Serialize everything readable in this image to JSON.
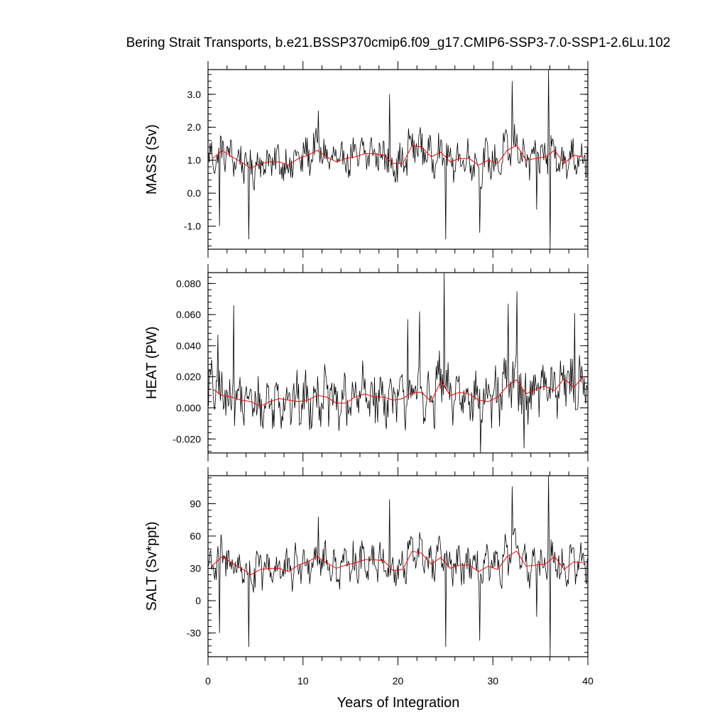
{
  "chart_data": {
    "type": "line",
    "title": "Bering Strait Transports, b.e21.BSSP370cmip6.f09_g17.CMIP6-SSP3-7.0-SSP1-2.6Lu.102",
    "xlabel": "Years of Integration",
    "xlim": [
      0,
      40
    ],
    "xticks": [
      0,
      10,
      20,
      30,
      40
    ],
    "xtick_labels": [
      "0",
      "10",
      "20",
      "30",
      "40"
    ],
    "line_colors": {
      "monthly": "#000000",
      "annual": "#ff0000"
    },
    "panels": [
      {
        "id": "mass",
        "ylabel": "MASS (Sv)",
        "ylim": [
          -1.7,
          3.75
        ],
        "yticks": [
          -1.0,
          0.0,
          1.0,
          2.0,
          3.0
        ],
        "ytick_labels": [
          "-1.0",
          "0.0",
          "1.0",
          "2.0",
          "3.0"
        ],
        "minor_step": 0.2,
        "annual": {
          "x": [
            0.5,
            1.5,
            2.5,
            3.5,
            4.5,
            5.5,
            6.5,
            7.5,
            8.5,
            9.5,
            10.5,
            11.5,
            12.5,
            13.5,
            14.5,
            15.5,
            16.5,
            17.5,
            18.5,
            19.5,
            20.5,
            21.5,
            22.5,
            23.5,
            24.5,
            25.5,
            26.5,
            27.5,
            28.5,
            29.5,
            30.5,
            31.5,
            32.5,
            33.5,
            34.5,
            35.5,
            36.5,
            37.5,
            38.5,
            39.5
          ],
          "values": [
            1.05,
            1.3,
            1.1,
            0.95,
            0.75,
            0.9,
            0.95,
            0.95,
            0.85,
            1.05,
            1.15,
            1.3,
            1.1,
            0.95,
            1.05,
            1.1,
            1.2,
            1.2,
            1.15,
            0.9,
            0.9,
            1.45,
            1.4,
            1.1,
            1.25,
            0.95,
            1.05,
            1.05,
            0.85,
            1.0,
            0.9,
            1.3,
            1.45,
            1.0,
            1.05,
            1.1,
            1.3,
            0.9,
            1.15,
            1.1
          ]
        },
        "monthly": {
          "x0": 0.0417,
          "dx": 0.0833,
          "n": 480,
          "amplitude": 0.8,
          "floor": -1.7,
          "ceiling": 3.75,
          "spikes": [
            {
              "x": 1.2,
              "value": -1.0
            },
            {
              "x": 4.3,
              "value": -1.4
            },
            {
              "x": 11.6,
              "value": 2.5
            },
            {
              "x": 19.1,
              "value": 3.0
            },
            {
              "x": 25.0,
              "value": -1.4
            },
            {
              "x": 28.6,
              "value": -1.2
            },
            {
              "x": 32.0,
              "value": 3.4
            },
            {
              "x": 35.9,
              "value": 3.75
            },
            {
              "x": 36.0,
              "value": -1.7
            },
            {
              "x": 34.6,
              "value": -0.5
            }
          ]
        }
      },
      {
        "id": "heat",
        "ylabel": "HEAT (PW)",
        "ylim": [
          -0.029,
          0.087
        ],
        "yticks": [
          -0.02,
          0.0,
          0.02,
          0.04,
          0.06,
          0.08
        ],
        "ytick_labels": [
          "-0.020",
          "0.000",
          "0.020",
          "0.040",
          "0.060",
          "0.080"
        ],
        "minor_step": 0.004,
        "annual": {
          "x": [
            0.5,
            1.5,
            2.5,
            3.5,
            4.5,
            5.5,
            6.5,
            7.5,
            8.5,
            9.5,
            10.5,
            11.5,
            12.5,
            13.5,
            14.5,
            15.5,
            16.5,
            17.5,
            18.5,
            19.5,
            20.5,
            21.5,
            22.5,
            23.5,
            24.5,
            25.5,
            26.5,
            27.5,
            28.5,
            29.5,
            30.5,
            31.5,
            32.5,
            33.5,
            34.5,
            35.5,
            36.5,
            37.5,
            38.5,
            39.5
          ],
          "values": [
            0.012,
            0.008,
            0.007,
            0.005,
            0.004,
            0.001,
            0.004,
            0.006,
            0.005,
            0.004,
            0.005,
            0.008,
            0.007,
            0.003,
            0.003,
            0.007,
            0.009,
            0.007,
            0.007,
            0.005,
            0.006,
            0.01,
            0.01,
            0.004,
            0.017,
            0.008,
            0.01,
            0.009,
            0.005,
            0.004,
            0.007,
            0.014,
            0.018,
            0.009,
            0.012,
            0.014,
            0.011,
            0.019,
            0.013,
            0.02
          ]
        },
        "monthly": {
          "x0": 0.0417,
          "dx": 0.0833,
          "n": 480,
          "amplitude": 0.024,
          "floor": -0.029,
          "ceiling": 0.087,
          "spikes": [
            {
              "x": 1.0,
              "value": 0.047
            },
            {
              "x": 2.7,
              "value": 0.066
            },
            {
              "x": 21.0,
              "value": 0.057
            },
            {
              "x": 22.3,
              "value": 0.062
            },
            {
              "x": 24.9,
              "value": 0.087
            },
            {
              "x": 28.7,
              "value": -0.029
            },
            {
              "x": 31.6,
              "value": 0.067
            },
            {
              "x": 32.5,
              "value": 0.075
            },
            {
              "x": 33.3,
              "value": -0.026
            },
            {
              "x": 38.6,
              "value": 0.061
            }
          ]
        }
      },
      {
        "id": "salt",
        "ylabel": "SALT (Sv*ppt)",
        "ylim": [
          -52,
          116
        ],
        "yticks": [
          -30,
          0,
          30,
          60,
          90
        ],
        "ytick_labels": [
          "-30",
          "0",
          "30",
          "60",
          "90"
        ],
        "minor_step": 6,
        "annual": {
          "x": [
            0.5,
            1.5,
            2.5,
            3.5,
            4.5,
            5.5,
            6.5,
            7.5,
            8.5,
            9.5,
            10.5,
            11.5,
            12.5,
            13.5,
            14.5,
            15.5,
            16.5,
            17.5,
            18.5,
            19.5,
            20.5,
            21.5,
            22.5,
            23.5,
            24.5,
            25.5,
            26.5,
            27.5,
            28.5,
            29.5,
            30.5,
            31.5,
            32.5,
            33.5,
            34.5,
            35.5,
            36.5,
            37.5,
            38.5,
            39.5
          ],
          "values": [
            33,
            41,
            35,
            30,
            24,
            29,
            30,
            30,
            27,
            33,
            36,
            41,
            35,
            30,
            33,
            35,
            38,
            38,
            37,
            28,
            29,
            46,
            44,
            34,
            40,
            30,
            33,
            33,
            27,
            32,
            29,
            41,
            46,
            32,
            33,
            34,
            41,
            29,
            36,
            35
          ]
        },
        "monthly": {
          "x0": 0.0417,
          "dx": 0.0833,
          "n": 480,
          "amplitude": 25,
          "floor": -52,
          "ceiling": 116,
          "spikes": [
            {
              "x": 1.2,
              "value": -30
            },
            {
              "x": 4.3,
              "value": -43
            },
            {
              "x": 11.6,
              "value": 78
            },
            {
              "x": 19.1,
              "value": 94
            },
            {
              "x": 25.0,
              "value": -43
            },
            {
              "x": 28.6,
              "value": -37
            },
            {
              "x": 32.0,
              "value": 106
            },
            {
              "x": 35.9,
              "value": 116
            },
            {
              "x": 36.0,
              "value": -52
            },
            {
              "x": 34.6,
              "value": -15
            }
          ]
        }
      }
    ]
  }
}
